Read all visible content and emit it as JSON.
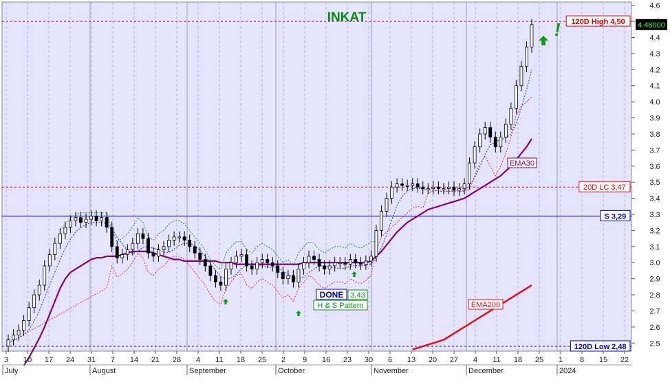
{
  "chart_data": {
    "type": "candlestick",
    "title": "INKAT",
    "ylim": [
      2.45,
      4.62
    ],
    "y_ticks": [
      2.5,
      2.6,
      2.7,
      2.8,
      2.9,
      3.0,
      3.1,
      3.2,
      3.3,
      3.4,
      3.5,
      3.6,
      3.7,
      3.8,
      3.9,
      4.0,
      4.1,
      4.2,
      4.3,
      4.4,
      4.5,
      4.6
    ],
    "x_tick_labels": [
      "3",
      "10",
      "17",
      "24",
      "31",
      "7",
      "14",
      "21",
      "28",
      "4",
      "11",
      "18",
      "25",
      "2",
      "9",
      "16",
      "23",
      "30",
      "6",
      "13",
      "20",
      "27",
      "4",
      "11",
      "18",
      "25",
      "1",
      "8",
      "15",
      "22"
    ],
    "months": [
      "July",
      "August",
      "September",
      "October",
      "November",
      "December",
      "2024"
    ],
    "last_price": "4.48000",
    "levels": [
      {
        "label": "120D High 4,50",
        "value": 4.5,
        "style": "dashed",
        "color": "#e00000"
      },
      {
        "label": "20D LC 3,47",
        "value": 3.47,
        "style": "dashed",
        "color": "#e00000"
      },
      {
        "label": "S 3,29",
        "value": 3.29,
        "style": "solid",
        "color": "#0000c8"
      },
      {
        "label": "120D Low 2,48",
        "value": 2.48,
        "style": "dashed",
        "color": "#0000c8"
      }
    ],
    "annotations": {
      "done_label": "DONE",
      "done_value": "3,43",
      "pattern_label": "H & S Pattern",
      "ema30_label": "EMA30",
      "ema200_label": "EMA200",
      "exclamation": "!"
    },
    "closes": [
      2.52,
      2.55,
      2.58,
      2.64,
      2.72,
      2.8,
      2.86,
      2.98,
      3.05,
      3.12,
      3.18,
      3.22,
      3.26,
      3.28,
      3.25,
      3.27,
      3.29,
      3.26,
      3.28,
      3.22,
      3.1,
      3.03,
      3.05,
      3.08,
      3.12,
      3.18,
      3.15,
      3.06,
      3.04,
      3.08,
      3.1,
      3.14,
      3.16,
      3.16,
      3.14,
      3.1,
      3.06,
      3.02,
      2.98,
      2.92,
      2.88,
      2.86,
      2.96,
      3.0,
      3.04,
      3.05,
      2.98,
      2.96,
      3.0,
      3.02,
      3.0,
      2.98,
      2.94,
      2.9,
      2.92,
      2.88,
      2.96,
      3.0,
      3.04,
      3.02,
      2.98,
      2.96,
      2.98,
      3.0,
      3.0,
      2.99,
      3.02,
      3.0,
      2.99,
      3.01,
      3.04,
      3.2,
      3.32,
      3.4,
      3.47,
      3.49,
      3.48,
      3.48,
      3.49,
      3.47,
      3.46,
      3.46,
      3.47,
      3.46,
      3.46,
      3.47,
      3.45,
      3.46,
      3.49,
      3.62,
      3.72,
      3.8,
      3.84,
      3.78,
      3.72,
      3.78,
      3.86,
      3.96,
      4.1,
      4.22,
      4.34,
      4.48
    ],
    "opens": [
      2.48,
      2.52,
      2.55,
      2.58,
      2.64,
      2.72,
      2.8,
      2.86,
      2.98,
      3.05,
      3.12,
      3.18,
      3.22,
      3.26,
      3.28,
      3.25,
      3.27,
      3.29,
      3.26,
      3.28,
      3.22,
      3.1,
      3.03,
      3.05,
      3.08,
      3.12,
      3.18,
      3.15,
      3.06,
      3.04,
      3.08,
      3.1,
      3.14,
      3.16,
      3.16,
      3.14,
      3.1,
      3.06,
      3.02,
      2.98,
      2.92,
      2.88,
      2.86,
      2.96,
      3.0,
      3.04,
      3.05,
      2.98,
      2.96,
      3.0,
      3.02,
      3.0,
      2.98,
      2.94,
      2.9,
      2.92,
      2.88,
      2.96,
      3.0,
      3.04,
      3.02,
      2.98,
      2.96,
      2.98,
      3.0,
      3.0,
      2.99,
      3.02,
      3.0,
      2.99,
      3.01,
      3.04,
      3.2,
      3.32,
      3.4,
      3.47,
      3.49,
      3.48,
      3.48,
      3.49,
      3.47,
      3.46,
      3.46,
      3.47,
      3.46,
      3.46,
      3.47,
      3.45,
      3.46,
      3.49,
      3.62,
      3.72,
      3.8,
      3.84,
      3.78,
      3.72,
      3.78,
      3.86,
      3.96,
      4.1,
      4.22,
      4.34
    ],
    "ema30": [
      2.24,
      2.27,
      2.31,
      2.36,
      2.41,
      2.47,
      2.53,
      2.6,
      2.68,
      2.76,
      2.84,
      2.9,
      2.94,
      2.96,
      2.98,
      3.0,
      3.02,
      3.03,
      3.03,
      3.04,
      3.04,
      3.04,
      3.05,
      3.06,
      3.07,
      3.07,
      3.07,
      3.07,
      3.06,
      3.05,
      3.04,
      3.03,
      3.02,
      3.02,
      3.01,
      3.01,
      3.01,
      3.01,
      3.01,
      3.01,
      3.01,
      3.0,
      3.0,
      3.0,
      2.99,
      2.99,
      2.99,
      2.99,
      2.99,
      2.99,
      2.99,
      2.99,
      2.99,
      2.99,
      2.99,
      2.99,
      2.99,
      3.0,
      3.0,
      3.0,
      3.0,
      3.0,
      3.0,
      3.0,
      3.0,
      3.0,
      3.0,
      3.0,
      3.0,
      3.0,
      3.01,
      3.04,
      3.07,
      3.11,
      3.15,
      3.19,
      3.22,
      3.25,
      3.27,
      3.29,
      3.31,
      3.33,
      3.34,
      3.35,
      3.36,
      3.37,
      3.38,
      3.39,
      3.4,
      3.42,
      3.44,
      3.46,
      3.48,
      3.5,
      3.52,
      3.54,
      3.57,
      3.6,
      3.64,
      3.68,
      3.72,
      3.77
    ],
    "ema200": [
      2.46,
      2.47,
      2.48,
      2.49,
      2.5,
      2.51,
      2.52,
      2.54,
      2.56,
      2.58,
      2.6,
      2.62,
      2.64,
      2.66,
      2.68,
      2.7,
      2.72,
      2.74,
      2.76,
      2.78,
      2.8,
      2.82,
      2.84,
      2.86
    ]
  }
}
